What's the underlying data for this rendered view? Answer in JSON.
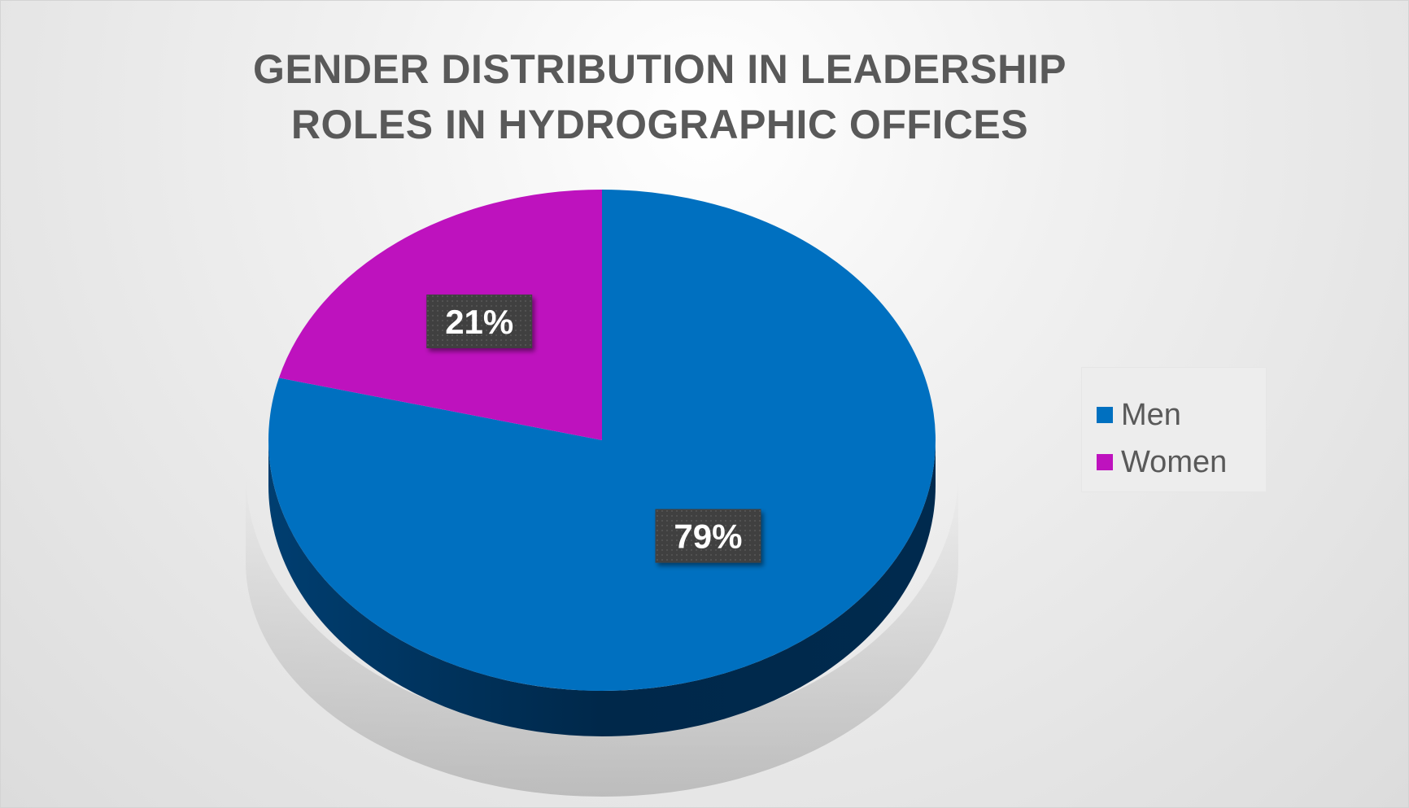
{
  "chart_data": {
    "type": "pie",
    "title": "GENDER DISTRIBUTION IN LEADERSHIP ROLES IN HYDROGRAPHIC OFFICES",
    "title_lines": [
      "GENDER DISTRIBUTION IN LEADERSHIP",
      "ROLES IN HYDROGRAPHIC OFFICES"
    ],
    "categories": [
      "Men",
      "Women"
    ],
    "values": [
      79,
      21
    ],
    "data_labels": [
      "79%",
      "21%"
    ],
    "colors": [
      "#0070C0",
      "#BE12BE"
    ],
    "legend_position": "right",
    "style": "3d"
  }
}
